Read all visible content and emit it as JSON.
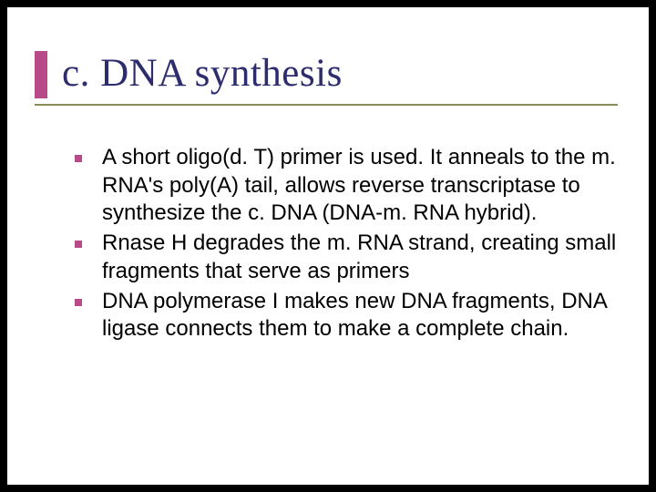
{
  "slide": {
    "title": "c. DNA synthesis",
    "title_color": "#2d2d6e",
    "accent_color": "#b84a8a",
    "underline_color": "#8a8a56",
    "title_fontsize": 43,
    "body_fontsize": 24,
    "bullet_color": "#b84a8a",
    "background": "#ffffff",
    "outer_background": "#000000",
    "bullets": [
      "A short oligo(d. T) primer is used. It anneals to the m. RNA's poly(A) tail, allows reverse transcriptase to synthesize the c. DNA (DNA-m. RNA hybrid).",
      "Rnase H degrades the m. RNA strand, creating small fragments that serve as primers",
      "DNA polymerase I makes new DNA fragments, DNA ligase connects them to make a complete chain."
    ]
  }
}
